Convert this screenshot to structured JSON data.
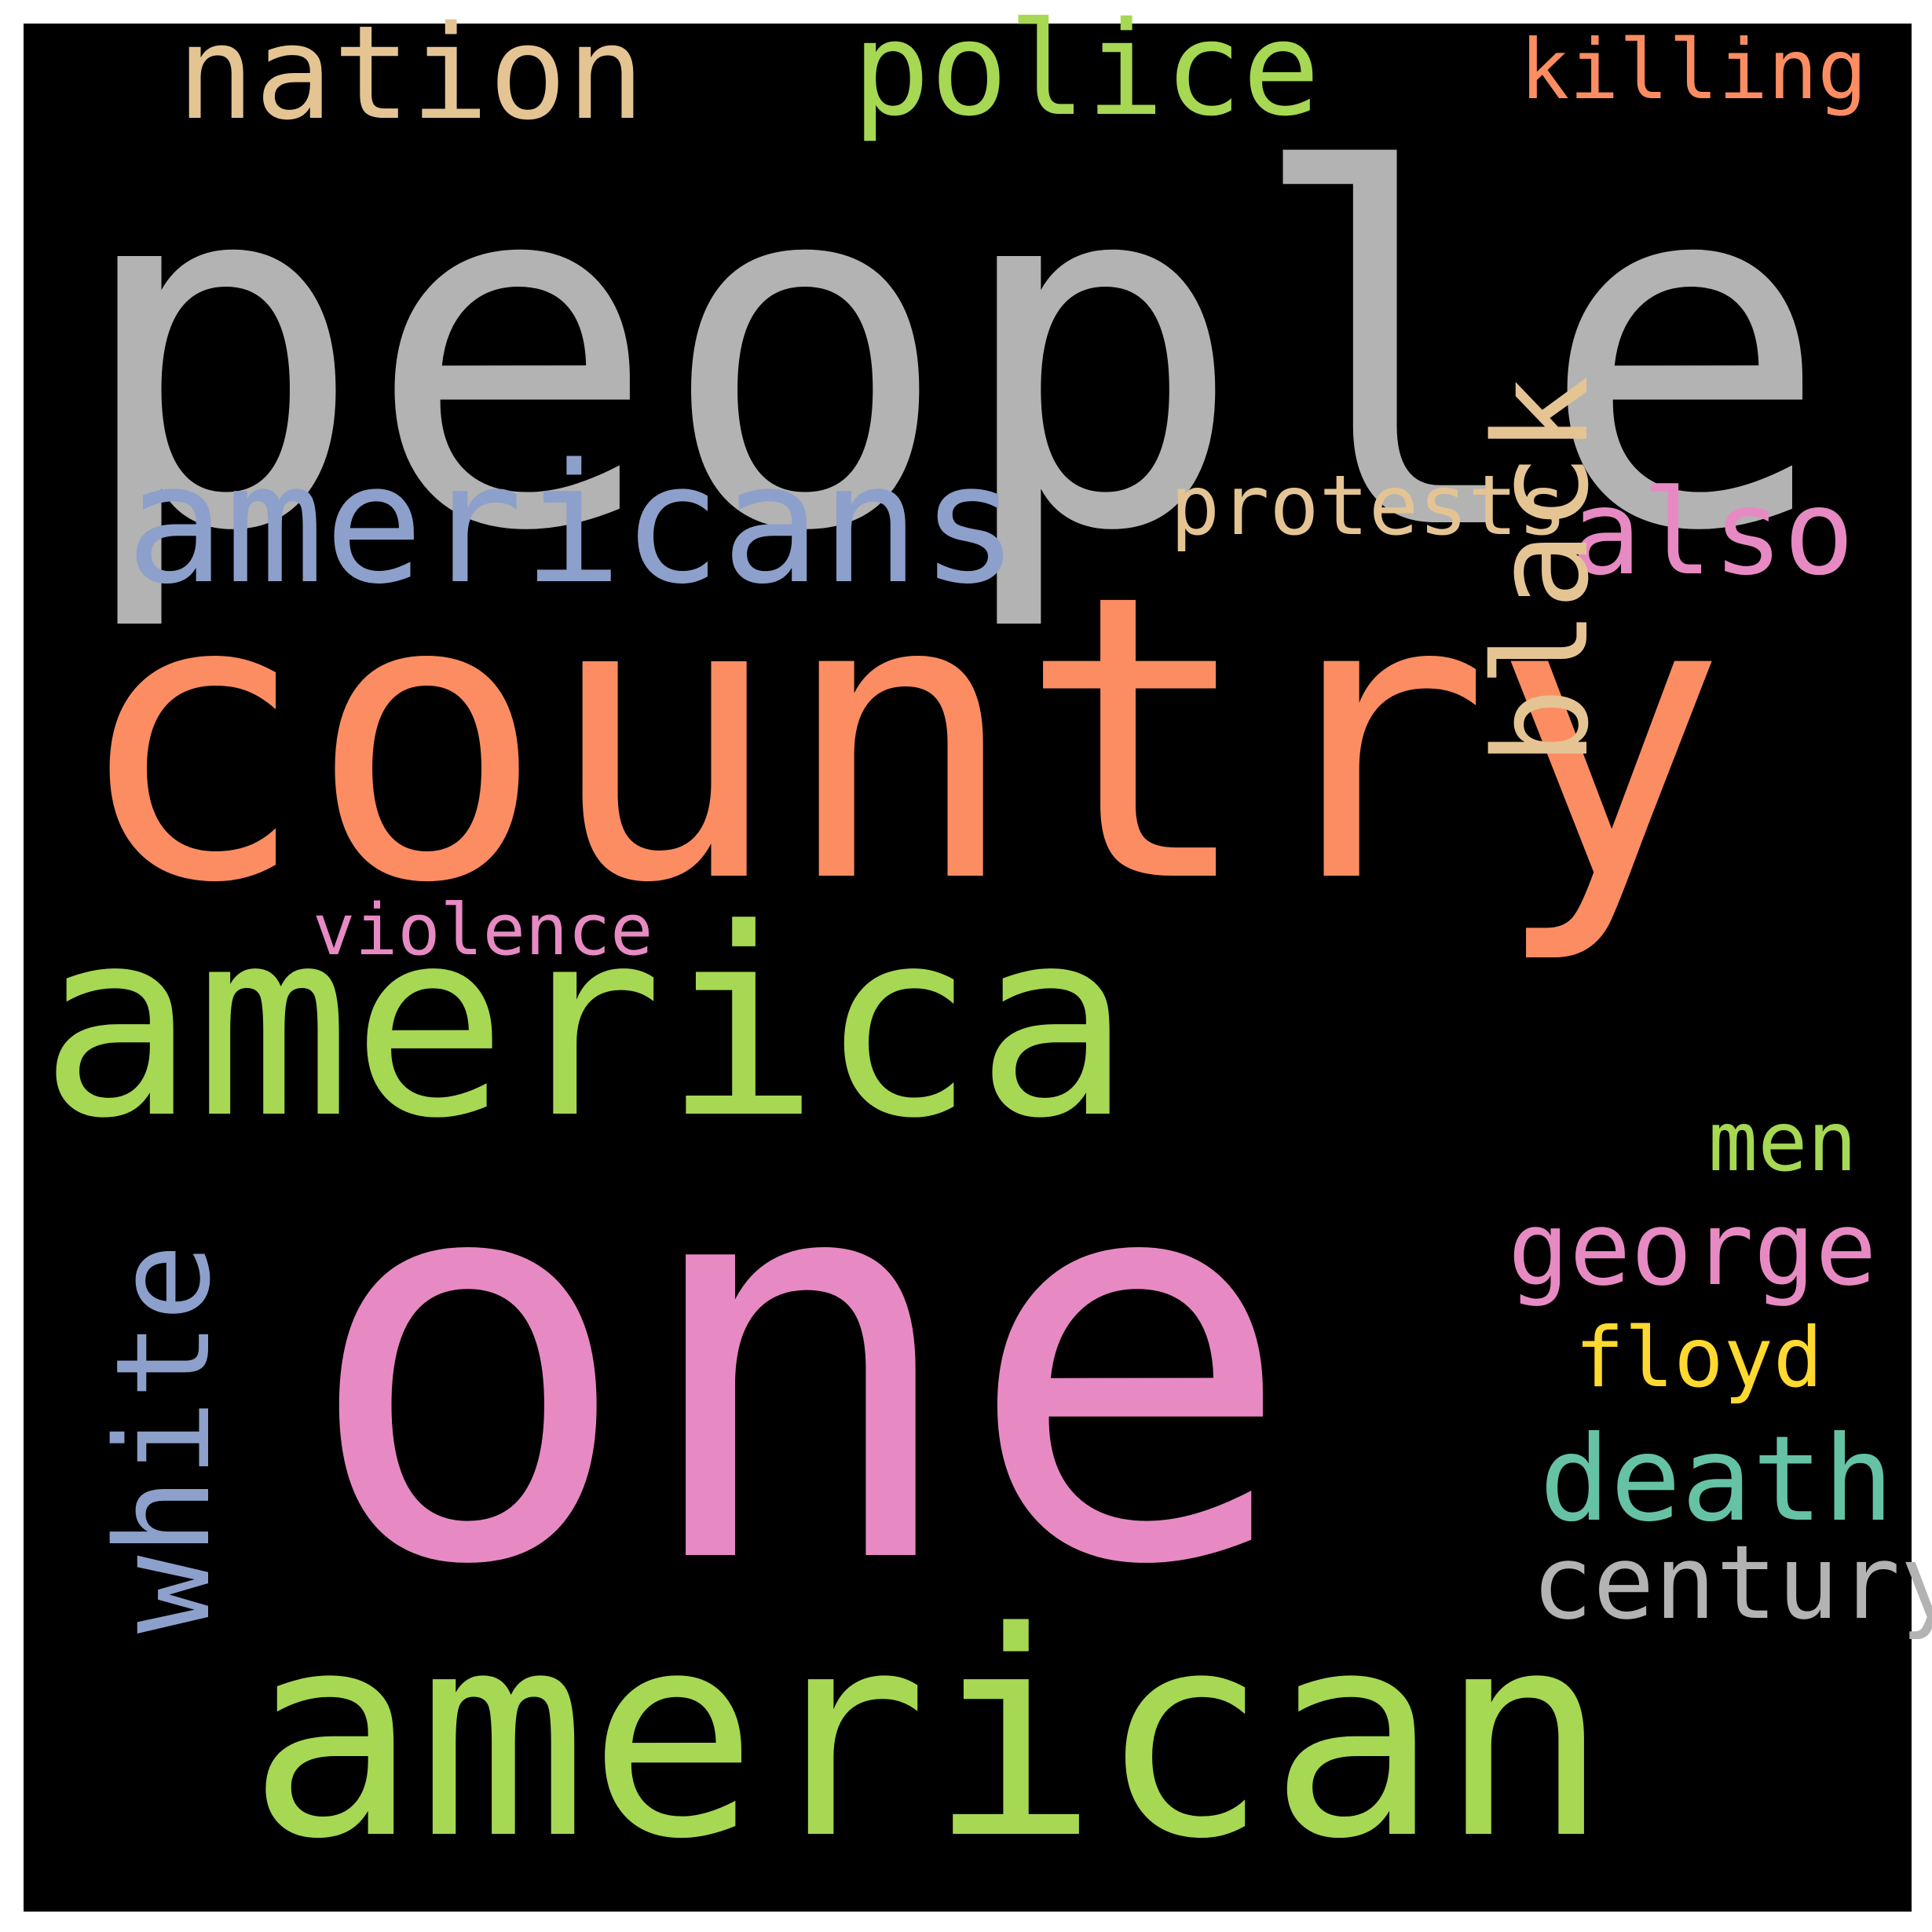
{
  "background": "#000000",
  "frame": "#ffffff",
  "words": [
    {
      "id": "people",
      "text": "people",
      "color": "#b3b3b3"
    },
    {
      "id": "country",
      "text": "country",
      "color": "#fc8d62"
    },
    {
      "id": "one",
      "text": "one",
      "color": "#e78ac3"
    },
    {
      "id": "american",
      "text": "american",
      "color": "#a6d854"
    },
    {
      "id": "america",
      "text": "america",
      "color": "#a6d854"
    },
    {
      "id": "americans",
      "text": "americans",
      "color": "#8da0cb"
    },
    {
      "id": "nation",
      "text": "nation",
      "color": "#e5c494"
    },
    {
      "id": "police",
      "text": "police",
      "color": "#a6d854"
    },
    {
      "id": "killing",
      "text": "killing",
      "color": "#fc8d62"
    },
    {
      "id": "protests",
      "text": "protests",
      "color": "#e5c494"
    },
    {
      "id": "also",
      "text": "also",
      "color": "#e78ac3"
    },
    {
      "id": "black",
      "text": "black",
      "color": "#e5c494"
    },
    {
      "id": "white",
      "text": "white",
      "color": "#8da0cb"
    },
    {
      "id": "violence",
      "text": "violence",
      "color": "#e78ac3"
    },
    {
      "id": "men",
      "text": "men",
      "color": "#a6d854"
    },
    {
      "id": "george",
      "text": "george",
      "color": "#e78ac3"
    },
    {
      "id": "floyd",
      "text": "floyd",
      "color": "#ffd92f"
    },
    {
      "id": "death",
      "text": "death",
      "color": "#66c2a5"
    },
    {
      "id": "century",
      "text": "century",
      "color": "#b3b3b3"
    }
  ]
}
